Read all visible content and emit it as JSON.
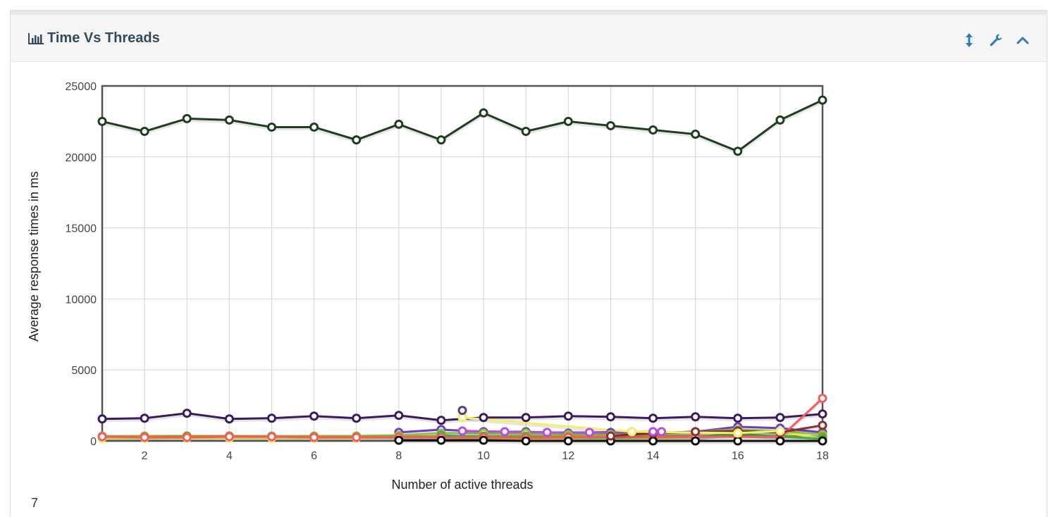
{
  "panel": {
    "title": "Time Vs Threads",
    "icons": [
      "bar-chart-icon",
      "resize-vertical-icon",
      "wrench-icon",
      "chevron-up-icon"
    ],
    "accent_color": "#337ab7",
    "title_color": "#34495e",
    "bottom_text": "7"
  },
  "chart_data": {
    "type": "line",
    "xlabel": "Number of active threads",
    "ylabel": "Average response times in ms",
    "xlim": [
      1,
      18
    ],
    "ylim": [
      0,
      25000
    ],
    "x_ticks": [
      2,
      4,
      6,
      8,
      10,
      12,
      14,
      16,
      18
    ],
    "y_ticks": [
      0,
      5000,
      10000,
      15000,
      20000,
      25000
    ],
    "grid": true,
    "series": [
      {
        "color": "#1f3d1f",
        "points": [
          [
            1,
            22500
          ],
          [
            2,
            21800
          ],
          [
            3,
            22700
          ],
          [
            4,
            22600
          ],
          [
            5,
            22100
          ],
          [
            6,
            22100
          ],
          [
            7,
            21200
          ],
          [
            8,
            22300
          ],
          [
            9,
            21200
          ],
          [
            10,
            23100
          ],
          [
            11,
            21800
          ],
          [
            12,
            22500
          ],
          [
            13,
            22200
          ],
          [
            14,
            21900
          ],
          [
            15,
            21600
          ],
          [
            16,
            20400
          ],
          [
            17,
            22600
          ],
          [
            18,
            24000
          ]
        ]
      },
      {
        "color": "#3b1a5e",
        "points": [
          [
            1,
            1550
          ],
          [
            2,
            1600
          ],
          [
            3,
            1950
          ],
          [
            4,
            1550
          ],
          [
            5,
            1600
          ],
          [
            6,
            1750
          ],
          [
            7,
            1600
          ],
          [
            8,
            1800
          ],
          [
            9,
            1450
          ],
          [
            10,
            1650
          ],
          [
            11,
            1650
          ],
          [
            12,
            1750
          ],
          [
            13,
            1700
          ],
          [
            14,
            1600
          ],
          [
            15,
            1700
          ],
          [
            16,
            1600
          ],
          [
            17,
            1650
          ],
          [
            18,
            1900
          ]
        ]
      },
      {
        "color": "#6a3fbf",
        "points": [
          [
            8,
            600
          ],
          [
            9,
            800
          ],
          [
            10,
            650
          ],
          [
            11,
            650
          ],
          [
            12,
            550
          ],
          [
            13,
            600
          ],
          [
            14,
            550
          ],
          [
            15,
            650
          ],
          [
            16,
            1000
          ],
          [
            17,
            900
          ],
          [
            18,
            600
          ]
        ]
      },
      {
        "color": "#8fbf4f",
        "points": [
          [
            1,
            350
          ],
          [
            2,
            350
          ],
          [
            3,
            350
          ],
          [
            4,
            350
          ],
          [
            5,
            350
          ],
          [
            6,
            350
          ],
          [
            7,
            350
          ],
          [
            8,
            400
          ],
          [
            9,
            550
          ],
          [
            10,
            550
          ],
          [
            11,
            550
          ],
          [
            12,
            450
          ],
          [
            13,
            450
          ],
          [
            14,
            500
          ],
          [
            15,
            650
          ],
          [
            16,
            800
          ],
          [
            17,
            700
          ],
          [
            18,
            450
          ]
        ]
      },
      {
        "color": "#9a9a1a",
        "points": [
          [
            1,
            300
          ],
          [
            2,
            300
          ],
          [
            3,
            350
          ],
          [
            4,
            350
          ],
          [
            5,
            300
          ],
          [
            6,
            300
          ],
          [
            7,
            300
          ],
          [
            8,
            300
          ],
          [
            9,
            350
          ],
          [
            10,
            350
          ],
          [
            11,
            350
          ],
          [
            12,
            300
          ],
          [
            13,
            300
          ],
          [
            14,
            350
          ],
          [
            15,
            350
          ],
          [
            16,
            400
          ],
          [
            17,
            350
          ],
          [
            18,
            300
          ]
        ]
      },
      {
        "color": "#e8e84a",
        "points": [
          [
            1,
            200
          ],
          [
            2,
            200
          ],
          [
            3,
            200
          ],
          [
            4,
            200
          ],
          [
            5,
            200
          ],
          [
            6,
            200
          ],
          [
            7,
            200
          ],
          [
            8,
            250
          ],
          [
            9,
            250
          ],
          [
            10,
            200
          ],
          [
            11,
            150
          ],
          [
            12,
            200
          ],
          [
            13,
            200
          ],
          [
            14,
            200
          ],
          [
            15,
            250
          ],
          [
            16,
            600
          ],
          [
            17,
            650
          ],
          [
            18,
            150
          ]
        ]
      },
      {
        "color": "#3fae49",
        "points": [
          [
            9,
            400
          ],
          [
            10,
            300
          ],
          [
            11,
            250
          ],
          [
            12,
            250
          ],
          [
            13,
            250
          ],
          [
            14,
            250
          ],
          [
            15,
            300
          ],
          [
            16,
            500
          ],
          [
            17,
            300
          ],
          [
            18,
            150
          ]
        ]
      },
      {
        "color": "#f25c5c",
        "points": [
          [
            1,
            300
          ],
          [
            2,
            250
          ],
          [
            3,
            250
          ],
          [
            4,
            300
          ],
          [
            5,
            300
          ],
          [
            6,
            250
          ],
          [
            7,
            250
          ],
          [
            8,
            250
          ],
          [
            9,
            250
          ],
          [
            10,
            250
          ],
          [
            11,
            200
          ],
          [
            12,
            250
          ],
          [
            13,
            300
          ],
          [
            14,
            250
          ],
          [
            15,
            300
          ],
          [
            16,
            300
          ],
          [
            17,
            250
          ],
          [
            18,
            3000
          ]
        ]
      },
      {
        "color": "#111111",
        "points": [
          [
            8,
            50
          ],
          [
            9,
            50
          ],
          [
            10,
            50
          ],
          [
            11,
            0
          ],
          [
            12,
            0
          ],
          [
            13,
            0
          ],
          [
            14,
            0
          ],
          [
            15,
            0
          ],
          [
            16,
            0
          ],
          [
            17,
            0
          ],
          [
            18,
            0
          ]
        ]
      },
      {
        "color": "#8b2e2e",
        "points": [
          [
            13,
            350
          ],
          [
            14,
            550
          ],
          [
            15,
            650
          ],
          [
            16,
            700
          ],
          [
            17,
            600
          ],
          [
            18,
            1100
          ]
        ]
      },
      {
        "color": "#b84de0",
        "points": [
          [
            9.5,
            700
          ],
          [
            10.5,
            650
          ],
          [
            11.5,
            600
          ],
          [
            12.5,
            600
          ],
          [
            13.5,
            650
          ],
          [
            14,
            650
          ],
          [
            14.2,
            650
          ]
        ]
      },
      {
        "color": "#f0f06a",
        "points": [
          [
            9.5,
            1650
          ],
          [
            13.5,
            650
          ],
          [
            16,
            550
          ],
          [
            17,
            700
          ]
        ]
      },
      {
        "color": "#5b3a8a",
        "points": [
          [
            9.5,
            2150
          ]
        ]
      }
    ]
  }
}
